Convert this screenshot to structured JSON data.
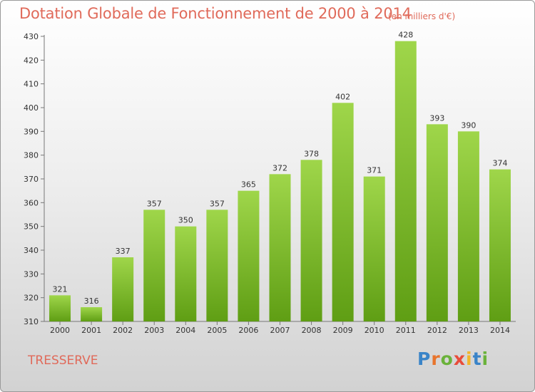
{
  "chart_data": {
    "type": "bar",
    "title": "Dotation Globale de Fonctionnement de 2000 à 2014",
    "subtitle": "(en milliers d'€)",
    "categories": [
      "2000",
      "2001",
      "2002",
      "2003",
      "2004",
      "2005",
      "2006",
      "2007",
      "2008",
      "2009",
      "2010",
      "2011",
      "2012",
      "2013",
      "2014"
    ],
    "values": [
      321,
      316,
      337,
      357,
      350,
      357,
      365,
      372,
      378,
      402,
      371,
      428,
      393,
      390,
      374
    ],
    "ylim": [
      310,
      430
    ],
    "yticks": [
      310,
      320,
      330,
      340,
      350,
      360,
      370,
      380,
      390,
      400,
      410,
      420,
      430
    ],
    "grid": false,
    "bar_color": "#7dbf2e"
  },
  "footer": {
    "town": "TRESSERVE",
    "logo": "Proxiti",
    "logo_colors": [
      "#3a84c8",
      "#e8742c",
      "#6ab23a",
      "#e84c3a",
      "#f2b52a",
      "#3a84c8",
      "#6ab23a"
    ]
  }
}
